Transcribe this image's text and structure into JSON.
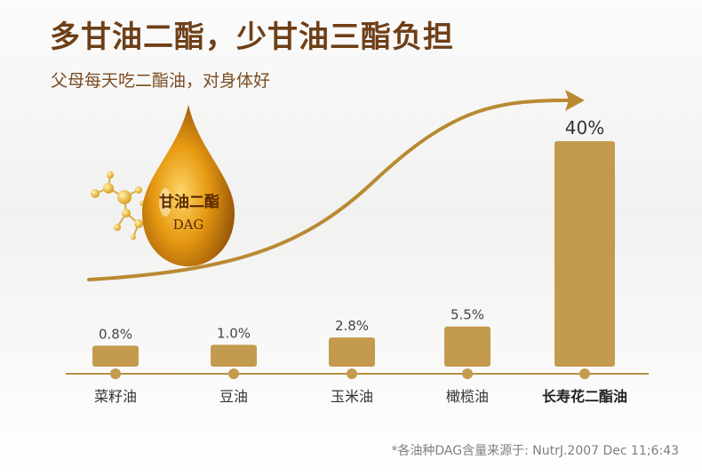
{
  "header": {
    "title": "多甘油二酯，少甘油三酯负担",
    "subtitle": "父母每天吃二酯油，对身体好"
  },
  "badge": {
    "line1": "甘油二酯",
    "line2": "DAG"
  },
  "footnote": "*各油种DAG含量来源于: NutrJ.2007 Dec 11;6:43",
  "colors": {
    "bar": "#c49b4e",
    "title": "#6e3f17",
    "axis": "#b88f44",
    "curve": "#b98a32"
  },
  "chart_data": {
    "type": "bar",
    "title": "",
    "xlabel": "",
    "ylabel": "",
    "categories": [
      "菜籽油",
      "豆油",
      "玉米油",
      "橄榄油",
      "长寿花二酯油"
    ],
    "values": [
      0.8,
      1.0,
      2.8,
      5.5,
      40
    ],
    "value_labels": [
      "0.8%",
      "1.0%",
      "2.8%",
      "5.5%",
      "40%"
    ],
    "highlight_index": 4,
    "unit": "%",
    "grid": false,
    "legend": "none",
    "trend_arrow": true
  }
}
